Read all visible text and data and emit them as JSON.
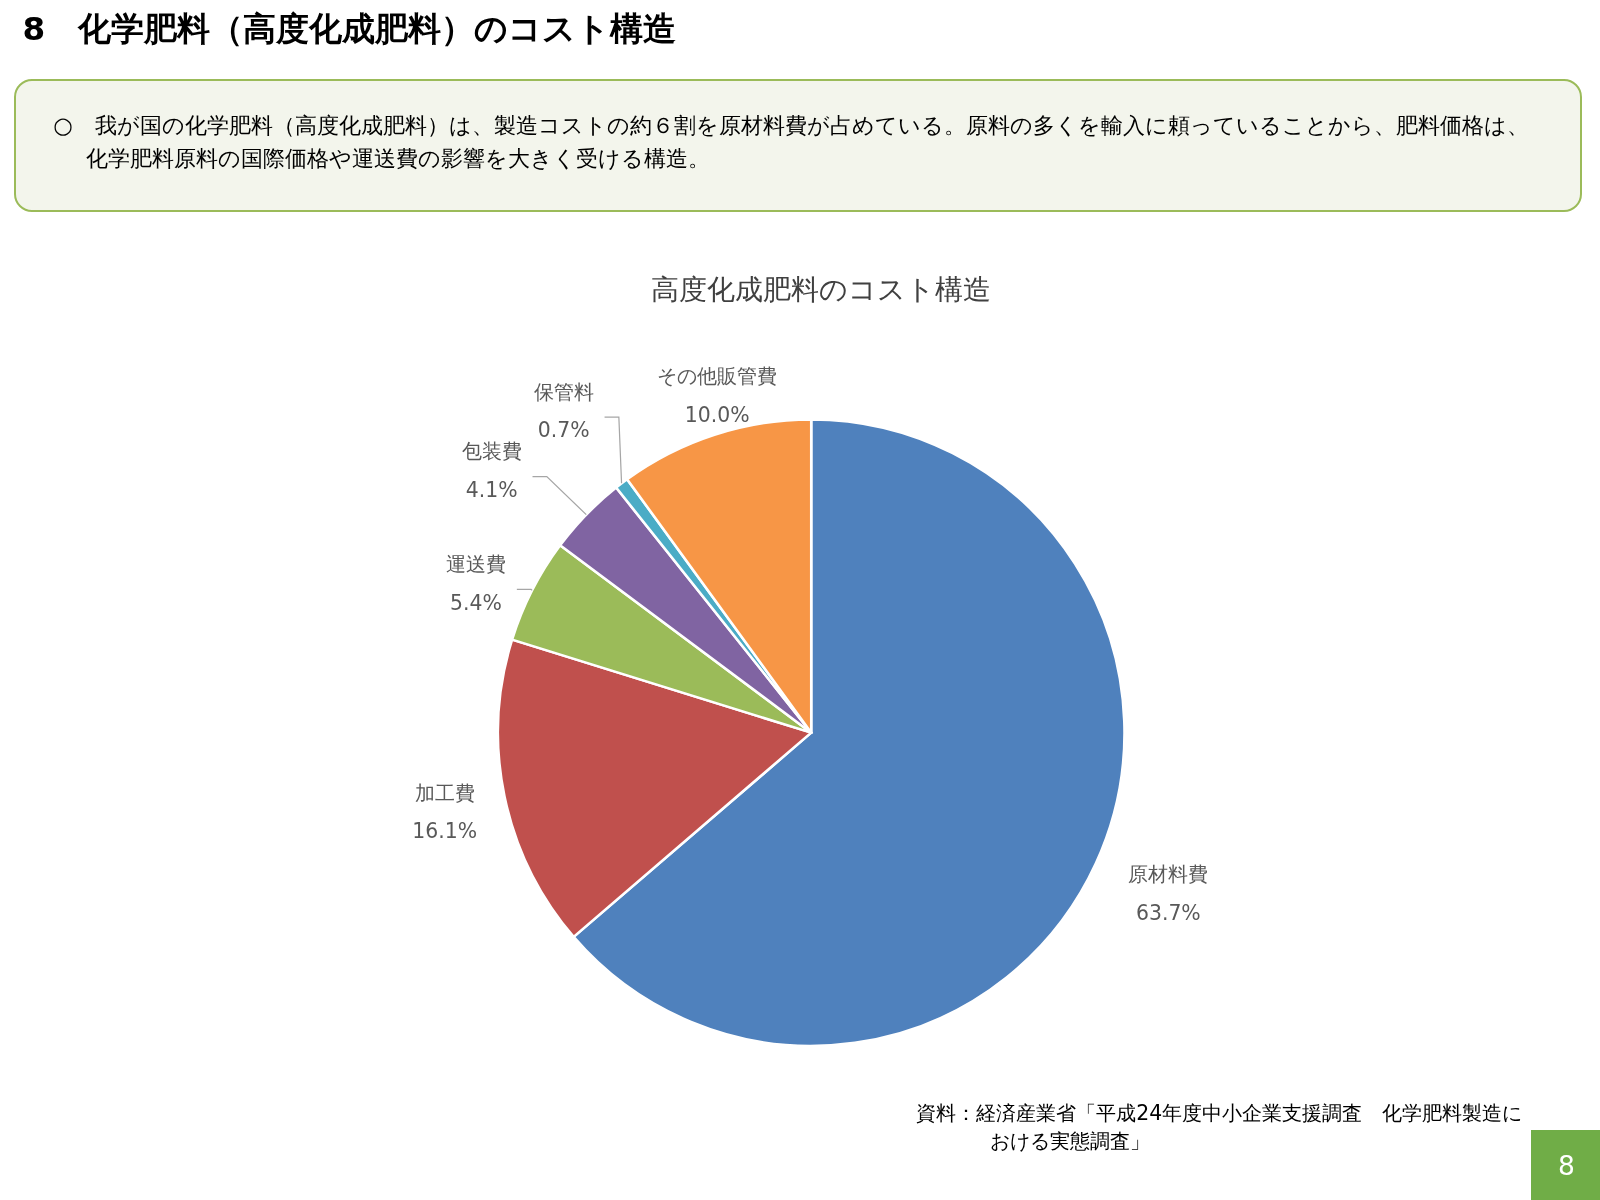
{
  "chart_data": {
    "type": "pie",
    "title": "高度化成肥料のコスト構造",
    "annotations": [
      "8　化学肥料（高度化成肥料）のコスト構造",
      "○　我が国の化学肥料（高度化成肥料）は、製造コストの約６割を原材料費が占めている。原料の多くを輸入に頼っていることから、肥料価格は、化学肥料原料の国際価格や運送費の影響を大きく受ける構造。",
      "資料：経済産業省「平成24年度中小企業支援調査　化学肥料製造における実態調査」",
      "8"
    ],
    "categories": [
      "原材料費",
      "加工費",
      "運送費",
      "包装費",
      "保管料",
      "その他販管費"
    ],
    "values": [
      63.7,
      16.1,
      5.4,
      4.1,
      0.7,
      10.0
    ],
    "value_labels": [
      "63.7%",
      "16.1%",
      "5.4%",
      "4.1%",
      "0.7%",
      "10.0%"
    ],
    "colors": [
      "#4f81bd",
      "#c0504d",
      "#9bbb59",
      "#8064a2",
      "#4bacc6",
      "#f79646"
    ]
  }
}
